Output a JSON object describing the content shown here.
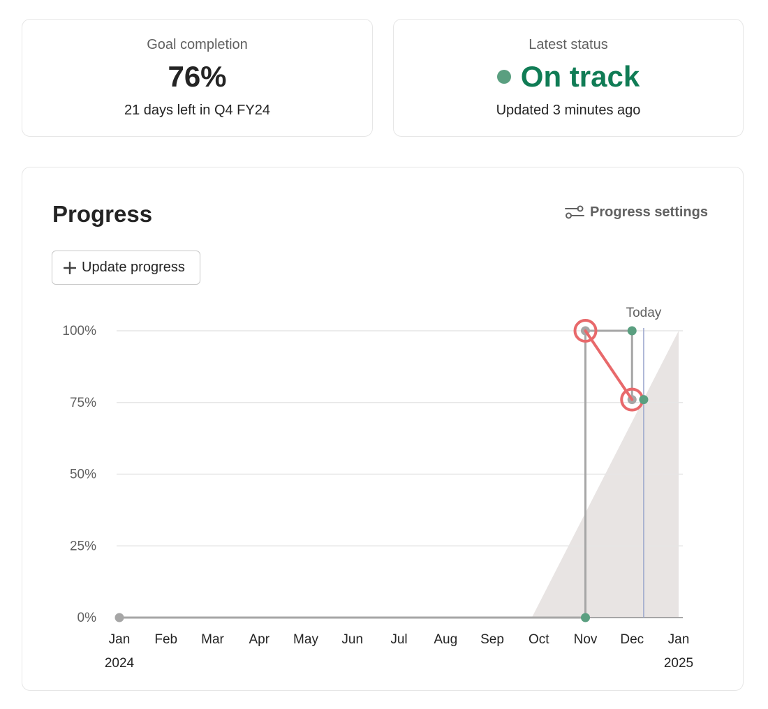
{
  "goal_card": {
    "label": "Goal completion",
    "value": "76%",
    "subtext": "21 days left in Q4 FY24"
  },
  "status_card": {
    "label": "Latest status",
    "status": "On track",
    "status_color": "#107c55",
    "dot_color": "#5a9f80",
    "updated": "Updated 3 minutes ago"
  },
  "progress_card": {
    "title": "Progress",
    "settings_label": "Progress settings",
    "settings_icon": "sliders-icon",
    "update_button_label": "Update progress",
    "update_button_icon": "plus-icon"
  },
  "chart_data": {
    "type": "line",
    "y_ticks": [
      "100%",
      "75%",
      "50%",
      "25%",
      "0%"
    ],
    "x_ticks": [
      "Jan",
      "Feb",
      "Mar",
      "Apr",
      "May",
      "Jun",
      "Jul",
      "Aug",
      "Sep",
      "Oct",
      "Nov",
      "Dec",
      "Jan"
    ],
    "x_start_year": "2024",
    "x_end_year": "2025",
    "ylim": [
      0,
      100
    ],
    "today_label": "Today",
    "grid": true,
    "series": [
      {
        "color": "#a6a6a6",
        "points": [
          [
            0,
            0
          ],
          [
            10.0,
            0
          ],
          [
            10.0,
            100
          ],
          [
            11.0,
            100
          ],
          [
            11.0,
            76
          ]
        ]
      },
      {
        "color": "#5a9f80",
        "points": [
          [
            10.0,
            0
          ],
          [
            11.0,
            100
          ],
          [
            11.25,
            76
          ]
        ]
      },
      {
        "color": "#e8696b",
        "points": [
          [
            10.0,
            100
          ],
          [
            11.0,
            76
          ]
        ]
      }
    ],
    "target_area": {
      "color": "#e8e4e3",
      "from": [
        8.85,
        0
      ],
      "to": [
        12.0,
        100
      ]
    },
    "today_x": 11.25
  }
}
